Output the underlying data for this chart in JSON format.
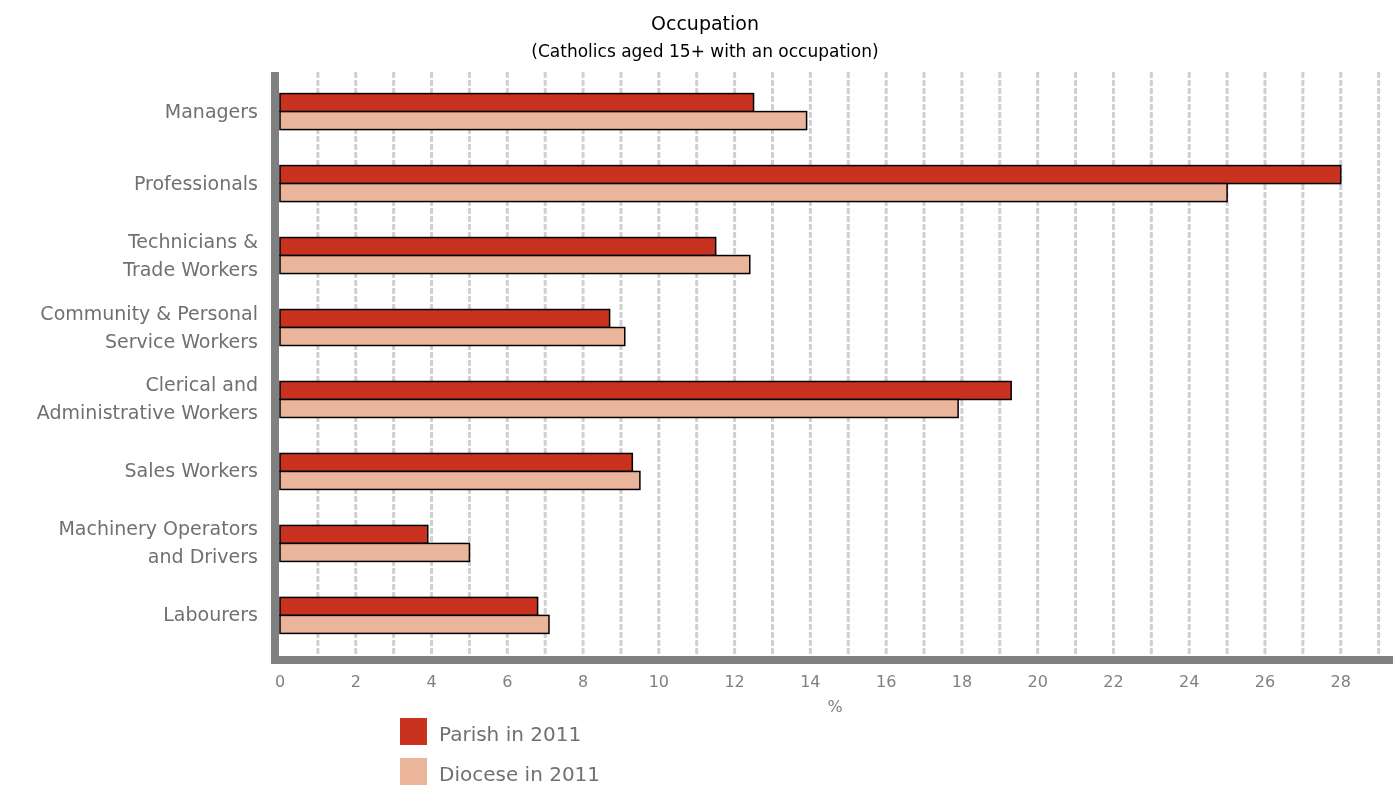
{
  "chart_data": {
    "type": "bar",
    "orientation": "horizontal",
    "title": "Occupation",
    "subtitle": "(Catholics aged 15+ with an occupation)",
    "xlabel": "%",
    "categories": [
      "Managers",
      "Professionals",
      "Technicians &\nTrade Workers",
      "Community & Personal\nService Workers",
      "Clerical and\nAdministrative Workers",
      "Sales Workers",
      "Machinery Operators\nand Drivers",
      "Labourers"
    ],
    "series": [
      {
        "name": "Parish in 2011",
        "color": "#c8321e",
        "values": [
          12.5,
          28.0,
          11.5,
          8.7,
          19.3,
          9.3,
          3.9,
          6.8
        ]
      },
      {
        "name": "Diocese in 2011",
        "color": "#ebb59c",
        "values": [
          13.9,
          25.0,
          12.4,
          9.1,
          17.9,
          9.5,
          5.0,
          7.1
        ]
      }
    ],
    "xlim": [
      0,
      29.3
    ],
    "xticks": [
      0,
      {
        "value": 1,
        "label": null
      },
      2,
      {
        "value": 3,
        "label": null
      },
      4,
      {
        "value": 5,
        "label": null
      },
      6,
      {
        "value": 7,
        "label": null
      },
      8,
      {
        "value": 9,
        "label": null
      },
      10,
      {
        "value": 11,
        "label": null
      },
      12,
      {
        "value": 13,
        "label": null
      },
      14,
      {
        "value": 15,
        "label": null
      },
      16,
      {
        "value": 17,
        "label": null
      },
      18,
      {
        "value": 19,
        "label": null
      },
      20,
      {
        "value": 21,
        "label": null
      },
      22,
      {
        "value": 23,
        "label": null
      },
      24,
      {
        "value": 25,
        "label": null
      },
      26,
      {
        "value": 27,
        "label": null
      },
      28,
      {
        "value": 29,
        "label": null
      }
    ],
    "grid": "x",
    "legend": "bottom"
  }
}
